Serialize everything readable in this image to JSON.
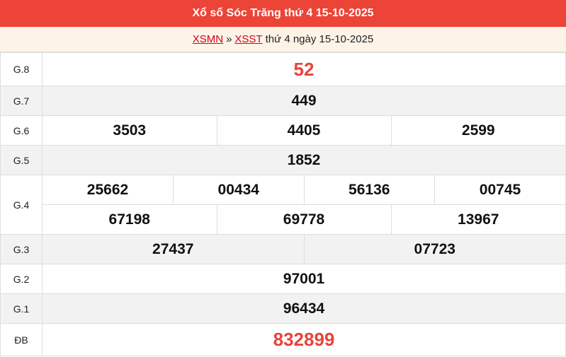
{
  "header": {
    "title": "Xổ số Sóc Trăng thứ 4 15-10-2025"
  },
  "breadcrumb": {
    "link1": "XSMN",
    "separator": "»",
    "link2": "XSST",
    "text": "thứ 4 ngày 15-10-2025"
  },
  "colors": {
    "header_bg": "#ec4436",
    "highlight": "#e8433a",
    "subheader_bg": "#fdf3e7"
  },
  "prizes": {
    "g8": {
      "label": "G.8",
      "values": [
        "52"
      ]
    },
    "g7": {
      "label": "G.7",
      "values": [
        "449"
      ]
    },
    "g6": {
      "label": "G.6",
      "values": [
        "3503",
        "4405",
        "2599"
      ]
    },
    "g5": {
      "label": "G.5",
      "values": [
        "1852"
      ]
    },
    "g4": {
      "label": "G.4",
      "values": [
        "25662",
        "00434",
        "56136",
        "00745",
        "67198",
        "69778",
        "13967"
      ]
    },
    "g3": {
      "label": "G.3",
      "values": [
        "27437",
        "07723"
      ]
    },
    "g2": {
      "label": "G.2",
      "values": [
        "97001"
      ]
    },
    "g1": {
      "label": "G.1",
      "values": [
        "96434"
      ]
    },
    "db": {
      "label": "ĐB",
      "values": [
        "832899"
      ]
    }
  }
}
